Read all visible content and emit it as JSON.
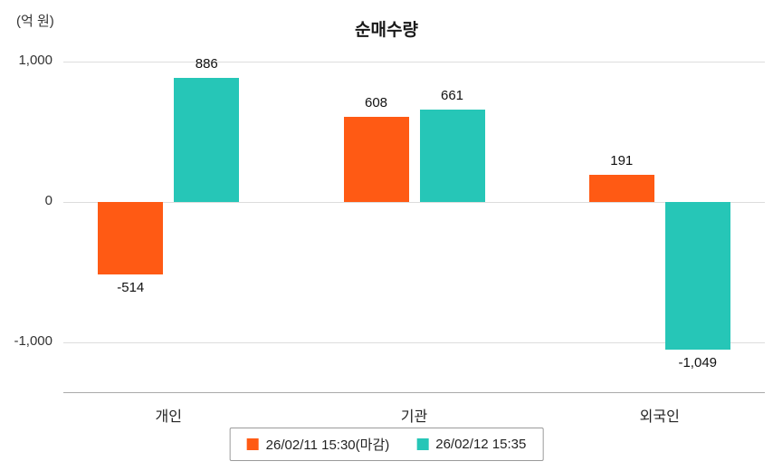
{
  "chart_data": {
    "type": "bar",
    "title": "순매수량",
    "unit_label": "(억 원)",
    "categories": [
      "개인",
      "기관",
      "외국인"
    ],
    "series": [
      {
        "name": "26/02/11 15:30(마감)",
        "color": "#FF5A14",
        "values": [
          -514,
          608,
          191
        ],
        "labels": [
          "-514",
          "608",
          "191"
        ]
      },
      {
        "name": "26/02/12 15:35",
        "color": "#26C6B7",
        "values": [
          886,
          661,
          -1049
        ],
        "labels": [
          "886",
          "661",
          "-1,049"
        ]
      }
    ],
    "y_ticks": [
      {
        "value": 1000,
        "label": "1,000"
      },
      {
        "value": 0,
        "label": "0"
      },
      {
        "value": -1000,
        "label": "-1,000"
      }
    ],
    "ylim": [
      -1355,
      1116
    ],
    "grid": true,
    "legend_position": "bottom"
  }
}
